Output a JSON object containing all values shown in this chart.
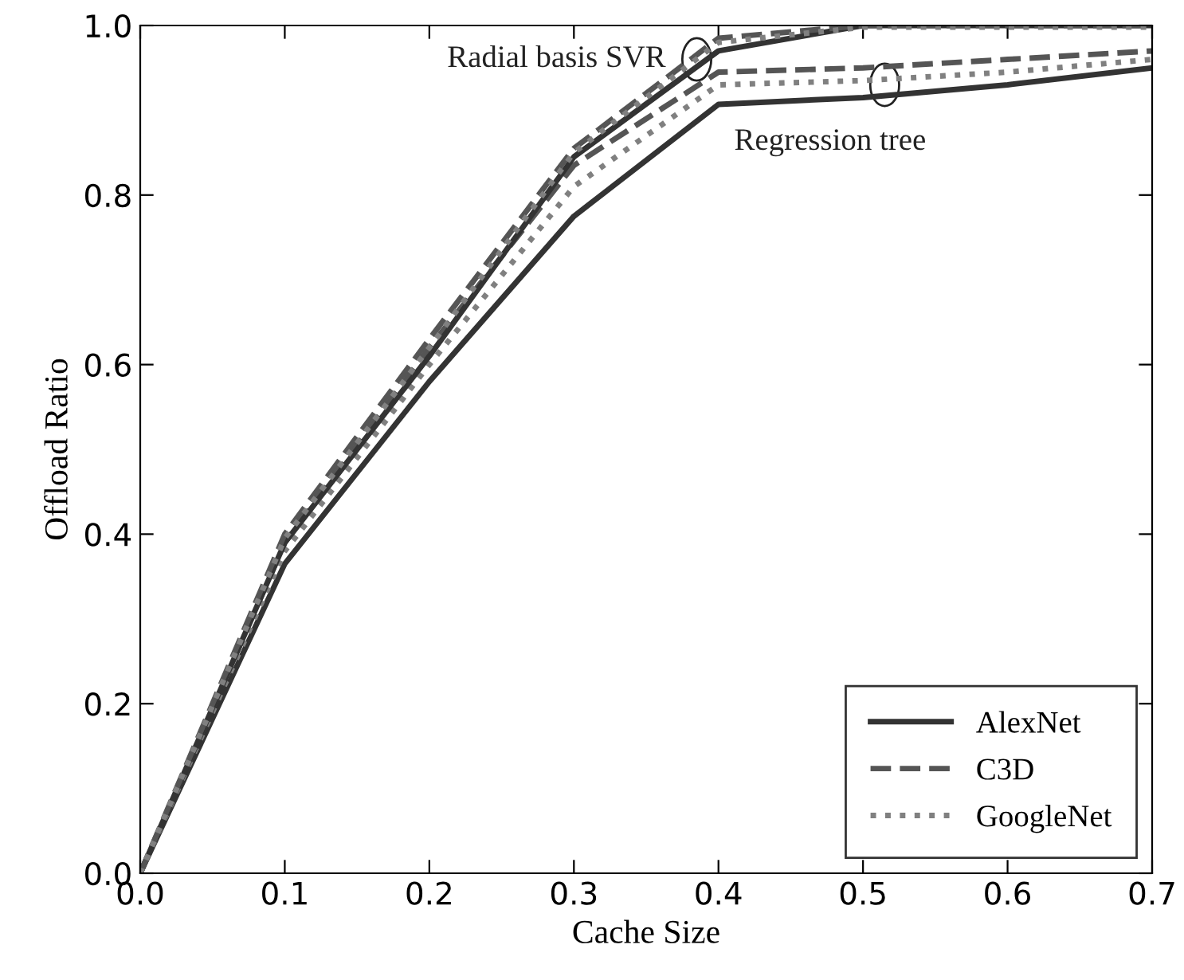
{
  "chart_data": {
    "type": "line",
    "xlabel": "Cache Size",
    "ylabel": "Offload Ratio",
    "x": [
      0.0,
      0.1,
      0.2,
      0.3,
      0.4,
      0.5,
      0.6,
      0.7
    ],
    "series": [
      {
        "name": "AlexNet",
        "color": "#333333",
        "line_style": "solid",
        "values": [
          0.0,
          0.365,
          0.58,
          0.775,
          0.907,
          0.915,
          0.93,
          0.95
        ]
      },
      {
        "name": "C3D",
        "color": "#555555",
        "line_style": "dashed",
        "values": [
          0.0,
          0.39,
          0.62,
          0.835,
          0.945,
          0.95,
          0.96,
          0.97
        ]
      },
      {
        "name": "GoogleNet",
        "color": "#808080",
        "line_style": "dotted",
        "values": [
          0.0,
          0.38,
          0.6,
          0.81,
          0.93,
          0.935,
          0.945,
          0.96
        ]
      },
      {
        "color": "#333333",
        "line_style": "solid",
        "values": [
          0.0,
          0.39,
          0.61,
          0.845,
          0.97,
          1.0,
          1.0,
          1.0
        ]
      },
      {
        "color": "#555555",
        "line_style": "dashed",
        "values": [
          0.0,
          0.4,
          0.63,
          0.855,
          0.985,
          1.0,
          1.0,
          1.0
        ]
      },
      {
        "color": "#808080",
        "line_style": "dotted",
        "values": [
          0.0,
          0.395,
          0.62,
          0.85,
          0.98,
          0.998,
          0.998,
          0.998
        ]
      }
    ],
    "annotations": [
      {
        "text": "Radial basis SVR",
        "x": 0.385,
        "y": 0.96
      },
      {
        "text": "Regression tree",
        "x": 0.515,
        "y": 0.93
      }
    ],
    "xlim": [
      0.0,
      0.7
    ],
    "xticks": [
      {
        "value": 0,
        "label": "0.0"
      },
      0.1,
      0.2,
      0.3,
      0.4,
      0.5,
      0.6,
      0.7
    ],
    "ylim": [
      0.0,
      1.0
    ],
    "yticks": [
      {
        "value": 0,
        "label": "0.0"
      },
      0.2,
      0.4,
      0.6,
      0.8,
      {
        "value": 1,
        "label": "1.0"
      }
    ],
    "grid": false,
    "legend": "bottom right",
    "marker": "none"
  }
}
